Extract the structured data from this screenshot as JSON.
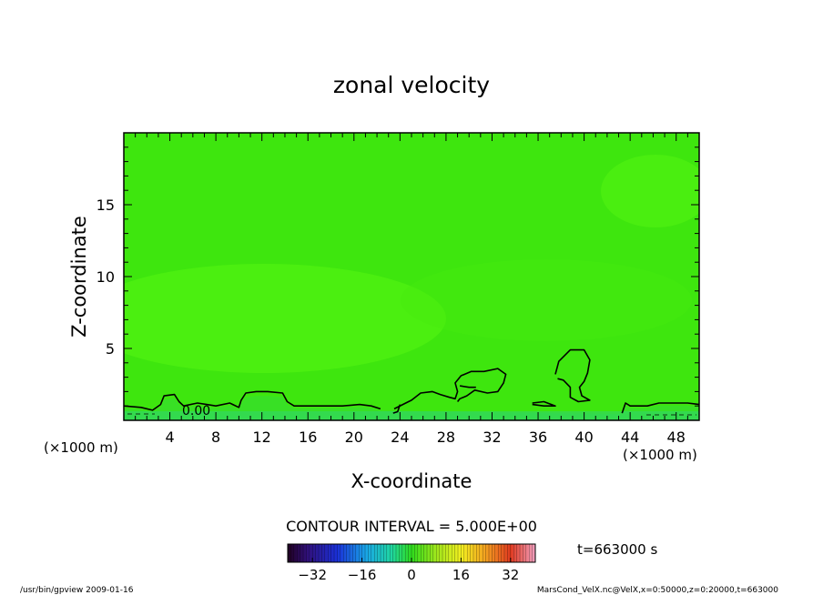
{
  "chart_data": {
    "type": "heatmap",
    "title": "zonal velocity",
    "xlabel": "X-coordinate",
    "ylabel": "Z-coordinate",
    "x_unit": "(×1000 m)",
    "z_unit": "(×1000 m)",
    "xlim": [
      0,
      50
    ],
    "ylim": [
      0,
      20
    ],
    "x_ticks": [
      4,
      8,
      12,
      16,
      20,
      24,
      28,
      32,
      36,
      40,
      44,
      48
    ],
    "y_ticks": [
      5,
      10,
      15
    ],
    "contour_interval": "CONTOUR INTERVAL = 5.000E+00",
    "contour_label": "0.00",
    "contours_zero": [
      [
        [
          0,
          1.0
        ],
        [
          1.5,
          0.9
        ],
        [
          2.5,
          0.7
        ],
        [
          3.2,
          1.1
        ],
        [
          3.5,
          1.7
        ],
        [
          4.4,
          1.8
        ],
        [
          4.8,
          1.3
        ],
        [
          5.2,
          1.0
        ],
        [
          6.4,
          1.2
        ],
        [
          7.2,
          1.1
        ],
        [
          8.0,
          1.0
        ],
        [
          9.2,
          1.2
        ],
        [
          10.0,
          0.9
        ],
        [
          10.2,
          1.4
        ],
        [
          10.6,
          1.9
        ],
        [
          11.5,
          2.0
        ],
        [
          12.5,
          2.0
        ],
        [
          13.8,
          1.9
        ],
        [
          14.2,
          1.3
        ],
        [
          14.8,
          1.0
        ],
        [
          16.0,
          1.0
        ],
        [
          17.5,
          1.0
        ],
        [
          19.0,
          1.0
        ],
        [
          20.5,
          1.1
        ],
        [
          21.5,
          1.0
        ],
        [
          22.3,
          0.8
        ]
      ],
      [
        [
          23.5,
          0.8
        ],
        [
          24.5,
          1.2
        ],
        [
          25.0,
          1.4
        ],
        [
          25.8,
          1.9
        ],
        [
          26.8,
          2.0
        ],
        [
          27.5,
          1.8
        ],
        [
          28.3,
          1.6
        ],
        [
          28.8,
          1.5
        ],
        [
          29.0,
          2.0
        ],
        [
          28.8,
          2.6
        ],
        [
          29.3,
          3.1
        ],
        [
          30.2,
          3.4
        ],
        [
          31.3,
          3.4
        ],
        [
          32.5,
          3.6
        ],
        [
          33.2,
          3.2
        ],
        [
          33.0,
          2.6
        ],
        [
          32.5,
          2.0
        ],
        [
          31.6,
          1.9
        ],
        [
          30.5,
          2.1
        ],
        [
          29.8,
          1.7
        ],
        [
          29.2,
          1.5
        ],
        [
          29.0,
          1.3
        ]
      ],
      [
        [
          37.5,
          3.2
        ],
        [
          37.8,
          4.1
        ],
        [
          38.8,
          4.9
        ],
        [
          40.0,
          4.9
        ],
        [
          40.5,
          4.2
        ],
        [
          40.3,
          3.3
        ],
        [
          40.0,
          2.7
        ],
        [
          39.6,
          2.3
        ],
        [
          39.8,
          1.7
        ],
        [
          40.5,
          1.4
        ],
        [
          39.5,
          1.3
        ],
        [
          38.8,
          1.6
        ],
        [
          38.8,
          2.3
        ],
        [
          38.2,
          2.8
        ],
        [
          37.7,
          2.9
        ]
      ],
      [
        [
          43.3,
          0.5
        ],
        [
          43.6,
          1.2
        ],
        [
          44.0,
          1.0
        ],
        [
          45.5,
          1.0
        ],
        [
          46.5,
          1.2
        ],
        [
          47.8,
          1.2
        ],
        [
          49.0,
          1.2
        ],
        [
          50,
          1.1
        ]
      ],
      [
        [
          35.5,
          1.2
        ],
        [
          36.5,
          1.3
        ],
        [
          37.5,
          1.0
        ],
        [
          36.5,
          1.0
        ],
        [
          35.5,
          1.1
        ]
      ],
      [
        [
          29.2,
          2.4
        ],
        [
          30.0,
          2.3
        ],
        [
          30.6,
          2.3
        ]
      ],
      [
        [
          24.0,
          1.1
        ],
        [
          23.8,
          0.6
        ],
        [
          23.4,
          0.5
        ]
      ]
    ],
    "colorbar": {
      "ticks": [
        -32,
        -16,
        0,
        16,
        32
      ],
      "range": [
        -40,
        40
      ],
      "time_label": "t=663000 s"
    },
    "footer_left": "/usr/bin/gpview   2009-01-16",
    "footer_right": "MarsCond_VelX.nc@VelX,x=0:50000,z=0:20000,t=663000",
    "colors": {
      "field_main": "#3ee60e",
      "field_light": "#56f512",
      "field_pale": "#46ec10",
      "field_low": "#35dd32",
      "field_lowest": "#31d66a"
    }
  }
}
